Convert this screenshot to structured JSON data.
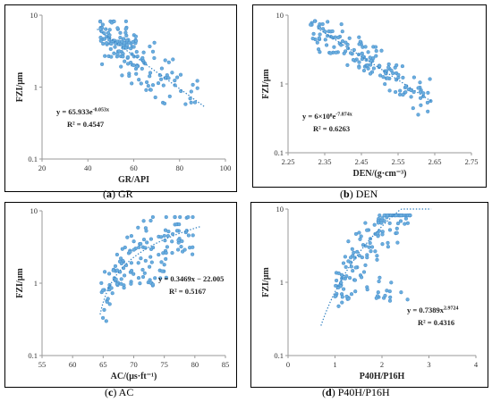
{
  "chart_data": [
    {
      "id": "gr",
      "type": "scatter",
      "caption_letter": "a",
      "caption_name": "GR",
      "xlabel": "GR/API",
      "ylabel": "FZI/μm",
      "xlim": [
        20,
        100
      ],
      "xticks": [
        "20",
        "40",
        "60",
        "80",
        "100"
      ],
      "xtick_values": [
        20,
        40,
        60,
        80,
        100
      ],
      "ylim": [
        0.1,
        10
      ],
      "yscale": "log",
      "yticks": [
        "0.1",
        "1",
        "10"
      ],
      "ytick_values": [
        0.1,
        1,
        10
      ],
      "equation": "y = 65.933e",
      "equation_exp": "-0.053x",
      "r2_label": "R² = 0.4547",
      "trend": {
        "form": "exp",
        "a": 65.933,
        "b": -0.053,
        "x_range": [
          44,
          91
        ]
      },
      "cluster": {
        "seed": 11,
        "groups": [
          {
            "n": 95,
            "x": [
              45,
              62
            ],
            "yfrom": "trend",
            "spread": 0.25
          },
          {
            "n": 35,
            "x": [
              55,
              78
            ],
            "yfrom": "trend",
            "spread": 0.3
          },
          {
            "n": 25,
            "x": [
              65,
              88
            ],
            "y": [
              0.55,
              1.5
            ]
          }
        ]
      }
    },
    {
      "id": "den",
      "type": "scatter",
      "caption_letter": "b",
      "caption_name": "DEN",
      "xlabel": "DEN/(g·cm⁻³)",
      "ylabel": "FZI/μm",
      "xlim": [
        2.25,
        2.75
      ],
      "xticks": [
        "2.25",
        "2.35",
        "2.45",
        "2.55",
        "2.65",
        "2.75"
      ],
      "xtick_values": [
        2.25,
        2.35,
        2.45,
        2.55,
        2.65,
        2.75
      ],
      "ylim": [
        0.1,
        10
      ],
      "yscale": "log",
      "yticks": [
        "0.1",
        "1",
        "10"
      ],
      "ytick_values": [
        0.1,
        1,
        10
      ],
      "equation": "y = 6×10⁸e",
      "equation_exp": "-7.874x",
      "r2_label": "R² = 0.6263",
      "trend": {
        "form": "exp",
        "a": 600000000,
        "b": -7.874,
        "x_range": [
          2.33,
          2.64
        ]
      },
      "cluster": {
        "seed": 23,
        "groups": [
          {
            "n": 150,
            "x": [
              2.31,
              2.64
            ],
            "yfrom": "trend",
            "spread": 0.22
          }
        ]
      }
    },
    {
      "id": "ac",
      "type": "scatter",
      "caption_letter": "c",
      "caption_name": "AC",
      "xlabel": "AC/(μs·ft⁻¹)",
      "ylabel": "FZI/μm",
      "xlim": [
        55,
        85
      ],
      "xticks": [
        "55",
        "60",
        "65",
        "70",
        "75",
        "80",
        "85"
      ],
      "xtick_values": [
        55,
        60,
        65,
        70,
        75,
        80,
        85
      ],
      "ylim": [
        0.1,
        10
      ],
      "yscale": "log",
      "yticks": [
        "0.1",
        "1",
        "10"
      ],
      "ytick_values": [
        0.1,
        1,
        10
      ],
      "equation": "y = 0.3469x − 22.005",
      "equation_exp": "",
      "r2_label": "R² = 0.5167",
      "trend": {
        "form": "linear",
        "a": 0.3469,
        "b": -22.005,
        "x_range": [
          64.5,
          81
        ]
      },
      "cluster": {
        "seed": 37,
        "groups": [
          {
            "n": 120,
            "x": [
              64.5,
              80
            ],
            "yfrom": "trend",
            "spread": 0.3
          },
          {
            "n": 25,
            "x": [
              67,
              76
            ],
            "y": [
              0.9,
              1.6
            ]
          }
        ]
      }
    },
    {
      "id": "p40",
      "type": "scatter",
      "caption_letter": "d",
      "caption_name": "P40H/P16H",
      "xlabel": "P40H/P16H",
      "ylabel": "FZI/μm",
      "xlim": [
        0,
        4
      ],
      "xticks": [
        "0",
        "1",
        "2",
        "3",
        "4"
      ],
      "xtick_values": [
        0,
        1,
        2,
        3,
        4
      ],
      "ylim": [
        0.1,
        10
      ],
      "yscale": "log",
      "yticks": [
        "0.1",
        "1",
        "10"
      ],
      "ytick_values": [
        0.1,
        1,
        10
      ],
      "equation": "y = 0.7389x",
      "equation_exp": "2.9724",
      "r2_label": "R² = 0.4316",
      "trend": {
        "form": "power",
        "a": 0.7389,
        "b": 2.9724,
        "x_range": [
          0.7,
          3.05
        ]
      },
      "cluster": {
        "seed": 53,
        "groups": [
          {
            "n": 120,
            "x": [
              1.0,
              2.6
            ],
            "yfrom": "trend",
            "spread": 0.32
          },
          {
            "n": 30,
            "x": [
              0.95,
              2.6
            ],
            "y": [
              0.55,
              1.3
            ]
          }
        ]
      }
    }
  ]
}
